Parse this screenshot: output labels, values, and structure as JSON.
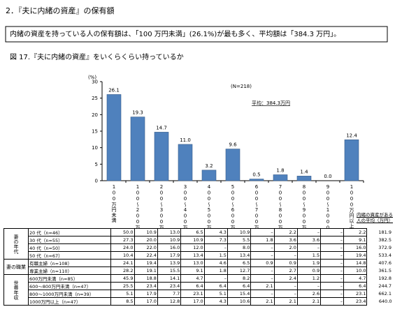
{
  "header": {
    "title": "2．『夫に内緒の資産』の保有額"
  },
  "summary": "内緒の資産を持っている人の保有額は、「100 万円未満」(26.1%)が最も多く、平均額は「384.3 万円」。",
  "figure_title": "図 17.『夫に内緒の資産』をいくらくらい持っているか",
  "chart_data": {
    "type": "bar",
    "y_label": "(%)",
    "annotations": [
      "(N=218)",
      "平均：384.3万円"
    ],
    "categories": [
      "100万円未満",
      "100～200万円未満",
      "200～300万円未満",
      "300～400万円未満",
      "400～500万円未満",
      "500～600万円未満",
      "600～700万円未満",
      "700～800万円未満",
      "800～900万円未満",
      "900～1000万円未満",
      "1000万円以上"
    ],
    "values": [
      26.1,
      19.3,
      14.7,
      11.0,
      3.2,
      9.6,
      0.5,
      1.8,
      1.4,
      0.0,
      12.4
    ],
    "value_labels": [
      "26.1",
      "19.3",
      "14.7",
      "11.0",
      "3.2",
      "9.6",
      "0.5",
      "1.8",
      "1.4",
      "0.0",
      "12.4"
    ],
    "color": "#4f81bd",
    "ylim": [
      0,
      30
    ],
    "yticks": [
      0,
      5,
      10,
      15,
      20,
      25,
      30
    ]
  },
  "table": {
    "average_header": "内緒の資産がある人の平均（万円）",
    "groups": [
      {
        "label": "妻の年代",
        "vertical": true,
        "rows": [
          {
            "label": "20 代（n=46）",
            "cells": [
              "50.0",
              "10.9",
              "13.0",
              "6.5",
              "4.3",
              "10.9",
              "–",
              "2.2",
              "–",
              "–",
              "2.2"
            ],
            "average": "181.9"
          },
          {
            "label": "30 代（n=55）",
            "cells": [
              "27.3",
              "20.0",
              "10.9",
              "10.9",
              "7.3",
              "5.5",
              "1.8",
              "3.6",
              "3.6",
              "–",
              "9.1"
            ],
            "average": "382.5"
          },
          {
            "label": "40 代（n=50）",
            "cells": [
              "24.0",
              "22.0",
              "16.0",
              "12.0",
              "–",
              "8.0",
              "–",
              "2.0",
              "–",
              "–",
              "16.0"
            ],
            "average": "372.9"
          },
          {
            "label": "50 代（n=67）",
            "cells": [
              "10.4",
              "22.4",
              "17.9",
              "13.4",
              "1.5",
              "13.4",
              "–",
              "–",
              "1.5",
              "–",
              "19.4"
            ],
            "average": "533.4"
          }
        ]
      },
      {
        "label": "妻の職業",
        "vertical": false,
        "rows": [
          {
            "label": "有職主婦（n=108）",
            "cells": [
              "24.1",
              "19.4",
              "13.9",
              "13.0",
              "4.6",
              "6.5",
              "0.9",
              "0.9",
              "1.9",
              "–",
              "14.8"
            ],
            "average": "407.6"
          },
          {
            "label": "専業主婦（n=110）",
            "cells": [
              "28.2",
              "19.1",
              "15.5",
              "9.1",
              "1.8",
              "12.7",
              "–",
              "2.7",
              "0.9",
              "–",
              "10.0"
            ],
            "average": "361.5"
          }
        ]
      },
      {
        "label": "世帯年収",
        "vertical": true,
        "rows": [
          {
            "label": "600万円未満（n=85）",
            "cells": [
              "45.9",
              "18.8",
              "14.1",
              "4.7",
              "–",
              "8.2",
              "–",
              "2.4",
              "1.2",
              "–",
              "4.7"
            ],
            "average": "192.8"
          },
          {
            "label": "600～800万円未満（n=47）",
            "cells": [
              "25.5",
              "23.4",
              "23.4",
              "6.4",
              "6.4",
              "6.4",
              "2.1",
              "–",
              "–",
              "–",
              "6.4"
            ],
            "average": "244.7"
          },
          {
            "label": "800～1000万円未満（n=39）",
            "cells": [
              "5.1",
              "17.9",
              "7.7",
              "23.1",
              "5.1",
              "15.4",
              "–",
              "–",
              "2.6",
              "–",
              "23.1"
            ],
            "average": "662.1"
          },
          {
            "label": "1000万円以上（n=47）",
            "cells": [
              "8.5",
              "17.0",
              "12.8",
              "17.0",
              "4.3",
              "10.6",
              "2.1",
              "2.1",
              "2.1",
              "–",
              "23.4"
            ],
            "average": "640.0"
          }
        ]
      }
    ]
  }
}
